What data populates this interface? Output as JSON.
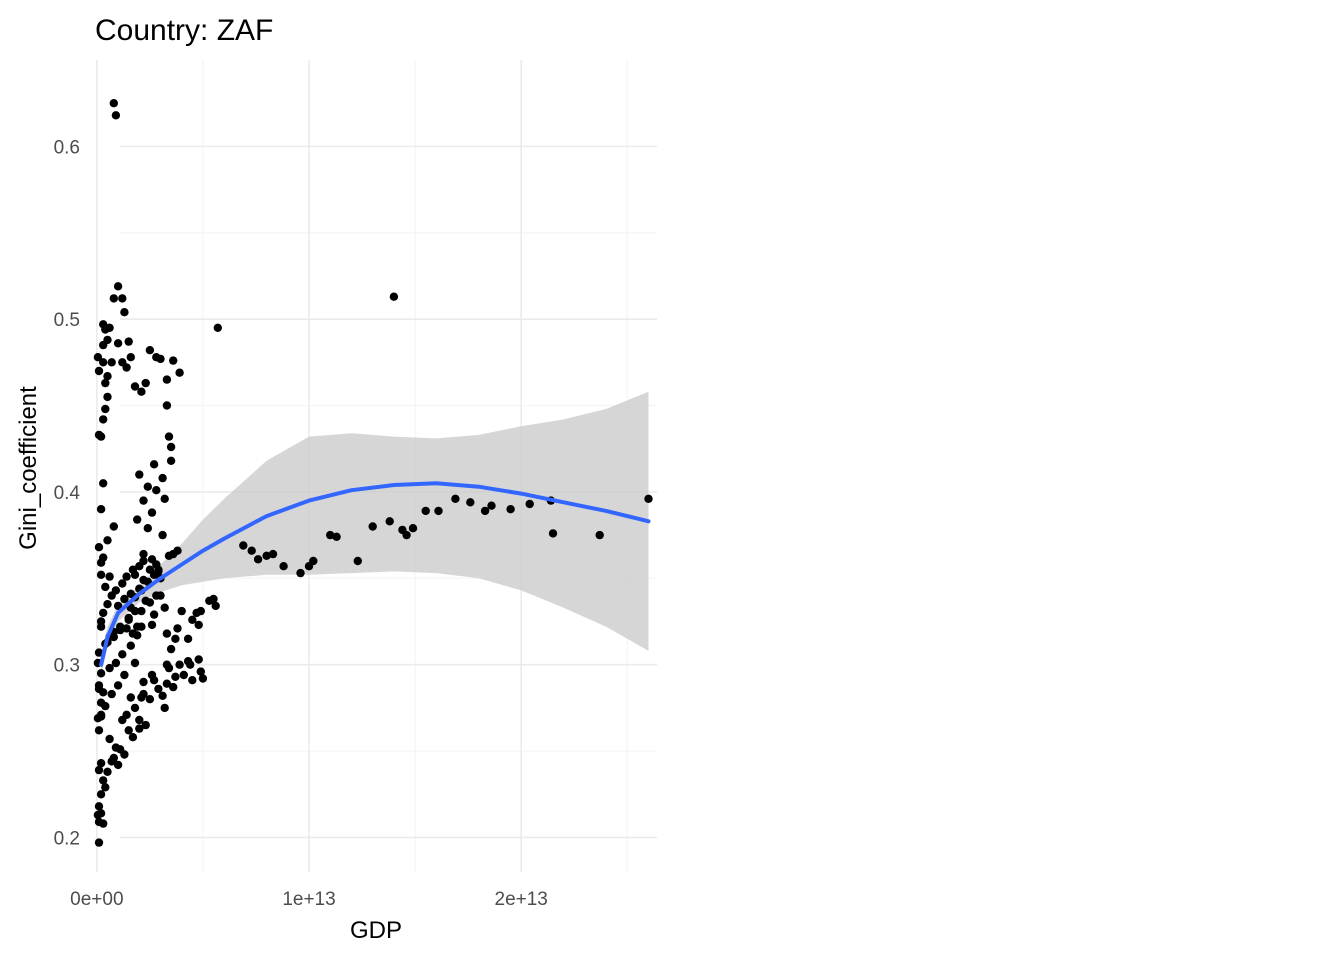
{
  "chart_data": {
    "type": "scatter",
    "title": "Country: ZAF",
    "xlabel": "GDP",
    "ylabel": "Gini_coefficient",
    "xlim": [
      -700000000000.0,
      26400000000000.0
    ],
    "ylim": [
      0.18,
      0.65
    ],
    "x_ticks": [
      0,
      10000000000000.0,
      20000000000000.0
    ],
    "x_tick_labels": [
      "0e+00",
      "1e+13",
      "2e+13"
    ],
    "y_ticks": [
      0.2,
      0.3,
      0.4,
      0.5,
      0.6
    ],
    "y_tick_labels": [
      "0.2",
      "0.3",
      "0.4",
      "0.5",
      "0.6"
    ],
    "grid": true,
    "legend": "none",
    "colors": {
      "points": "#000000",
      "smooth_line": "#3366ff",
      "confidence_band": "#cccccc"
    },
    "series": [
      {
        "kind": "points",
        "x": [
          800000000000.0,
          900000000000.0,
          1000000000000.0,
          800000000000.0,
          1200000000000.0,
          1300000000000.0,
          1500000000000.0,
          1000000000000.0,
          300000000000.0,
          400000000000.0,
          300000000000.0,
          500000000000.0,
          600000000000.0,
          300000000000.0,
          400000000000.0,
          700000000000.0,
          500000000000.0,
          500000000000.0,
          400000000000.0,
          1200000000000.0,
          1400000000000.0,
          1600000000000.0,
          1800000000000.0,
          2100000000000.0,
          2300000000000.0,
          2500000000000.0,
          2800000000000.0,
          3000000000000.0,
          3300000000000.0,
          3600000000000.0,
          3900000000000.0,
          3300000000000.0,
          3400000000000.0,
          3500000000000.0,
          2700000000000.0,
          3100000000000.0,
          3500000000000.0,
          2000000000000.0,
          2400000000000.0,
          2800000000000.0,
          3200000000000.0,
          2200000000000.0,
          2600000000000.0,
          1900000000000.0,
          2400000000000.0,
          3100000000000.0,
          5700000000000.0,
          3800000000000.0,
          2200000000000.0,
          2800000000000.0,
          3400000000000.0,
          2600000000000.0,
          2900000000000.0,
          1800000000000.0,
          2200000000000.0,
          3000000000000.0,
          2000000000000.0,
          1800000000000.0,
          2500000000000.0,
          3000000000000.0,
          1600000000000.0,
          2100000000000.0,
          2700000000000.0,
          3200000000000.0,
          1500000000000.0,
          1900000000000.0,
          2600000000000.0,
          3300000000000.0,
          3700000000000.0,
          4300000000000.0,
          4700000000000.0,
          5300000000000.0,
          5500000000000.0,
          5600000000000.0,
          4900000000000.0,
          4000000000000.0,
          4500000000000.0,
          4800000000000.0,
          4300000000000.0,
          3300000000000.0,
          3700000000000.0,
          2200000000000.0,
          2700000000000.0,
          3300000000000.0,
          3600000000000.0,
          4100000000000.0,
          4800000000000.0,
          4900000000000.0,
          5000000000000.0,
          4500000000000.0,
          3900000000000.0,
          3400000000000.0,
          2900000000000.0,
          3100000000000.0,
          2500000000000.0,
          1800000000000.0,
          1400000000000.0,
          1200000000000.0,
          1500000000000.0,
          2000000000000.0,
          1700000000000.0,
          2300000000000.0,
          2000000000000.0,
          1600000000000.0,
          900000000000.0,
          1100000000000.0,
          1300000000000.0,
          600000000000.0,
          700000000000.0,
          500000000000.0,
          800000000000.0,
          1000000000000.0,
          300000000000.0,
          400000000000.0,
          200000000000.0,
          100000000000.0,
          50000000000.0,
          100000000000.0,
          200000000000.0,
          300000000000.0,
          100000000000.0,
          200000000000.0,
          100000000000.0,
          50000000000.0,
          200000000000.0,
          300000000000.0,
          100000000000.0,
          200000000000.0,
          50000000000.0,
          100000000000.0,
          400000000000.0,
          600000000000.0,
          800000000000.0,
          1100000000000.0,
          1400000000000.0,
          1700000000000.0,
          200000000000.0,
          300000000000.0,
          500000000000.0,
          700000000000.0,
          900000000000.0,
          1200000000000.0,
          1400000000000.0,
          1700000000000.0,
          2000000000000.0,
          2200000000000.0,
          2500000000000.0,
          1000000000000.0,
          1300000000000.0,
          1600000000000.0,
          2100000000000.0,
          2400000000000.0,
          2700000000000.0,
          500000000000.0,
          800000000000.0,
          1100000000000.0,
          1500000000000.0,
          1800000000000.0,
          2300000000000.0,
          2800000000000.0,
          600000000000.0,
          900000000000.0,
          1200000000000.0,
          1600000000000.0,
          1900000000000.0,
          2100000000000.0,
          200000000000.0,
          400000000000.0,
          700000000000.0,
          1000000000000.0,
          1300000000000.0,
          200000000000.0,
          300000000000.0,
          500000000000.0,
          800000000000.0,
          100000000000.0,
          200000000000.0,
          400000000000.0,
          600000000000.0,
          200000000000.0,
          300000000000.0,
          100000000000.0,
          200000000000.0,
          50000000000.0,
          100000000000.0,
          300000000000.0,
          200000000000.0,
          100000000000.0,
          200000000000.0,
          100000000000.0,
          6900000000000.0,
          7300000000000.0,
          7600000000000.0,
          8000000000000.0,
          8300000000000.0,
          8800000000000.0,
          9600000000000.0,
          10000000000000.0,
          10200000000000.0,
          11000000000000.0,
          11300000000000.0,
          12300000000000.0,
          13000000000000.0,
          13800000000000.0,
          14400000000000.0,
          14600000000000.0,
          14900000000000.0,
          15500000000000.0,
          16100000000000.0,
          16900000000000.0,
          17600000000000.0,
          18300000000000.0,
          18600000000000.0,
          19500000000000.0,
          20400000000000.0,
          21400000000000.0,
          21500000000000.0,
          23700000000000.0,
          26000000000000.0,
          14000000000000.0,
          2900000000000.0,
          3600000000000.0,
          1800000000000.0,
          2200000000000.0,
          3500000000000.0,
          3800000000000.0,
          4400000000000.0,
          3200000000000.0,
          2600000000000.0,
          2100000000000.0
        ],
        "y": [
          0.625,
          0.618,
          0.519,
          0.512,
          0.512,
          0.504,
          0.487,
          0.486,
          0.497,
          0.494,
          0.485,
          0.488,
          0.495,
          0.475,
          0.463,
          0.475,
          0.467,
          0.455,
          0.448,
          0.475,
          0.472,
          0.478,
          0.461,
          0.458,
          0.463,
          0.482,
          0.478,
          0.477,
          0.465,
          0.476,
          0.469,
          0.45,
          0.432,
          0.426,
          0.416,
          0.408,
          0.418,
          0.41,
          0.403,
          0.401,
          0.396,
          0.395,
          0.388,
          0.384,
          0.379,
          0.375,
          0.495,
          0.366,
          0.364,
          0.358,
          0.363,
          0.361,
          0.355,
          0.352,
          0.349,
          0.35,
          0.344,
          0.339,
          0.336,
          0.34,
          0.333,
          0.331,
          0.329,
          0.333,
          0.327,
          0.322,
          0.323,
          0.318,
          0.315,
          0.315,
          0.33,
          0.337,
          0.338,
          0.334,
          0.331,
          0.331,
          0.326,
          0.323,
          0.302,
          0.3,
          0.293,
          0.29,
          0.291,
          0.289,
          0.287,
          0.294,
          0.303,
          0.296,
          0.292,
          0.291,
          0.3,
          0.298,
          0.286,
          0.282,
          0.28,
          0.275,
          0.271,
          0.268,
          0.262,
          0.263,
          0.258,
          0.265,
          0.268,
          0.281,
          0.252,
          0.251,
          0.248,
          0.257,
          0.244,
          0.238,
          0.246,
          0.242,
          0.233,
          0.229,
          0.225,
          0.218,
          0.213,
          0.209,
          0.214,
          0.208,
          0.197,
          0.243,
          0.239,
          0.269,
          0.271,
          0.284,
          0.288,
          0.295,
          0.301,
          0.307,
          0.312,
          0.316,
          0.319,
          0.322,
          0.321,
          0.318,
          0.325,
          0.33,
          0.335,
          0.34,
          0.343,
          0.347,
          0.351,
          0.355,
          0.357,
          0.36,
          0.355,
          0.334,
          0.338,
          0.341,
          0.343,
          0.348,
          0.352,
          0.313,
          0.316,
          0.32,
          0.326,
          0.331,
          0.337,
          0.34,
          0.298,
          0.301,
          0.306,
          0.311,
          0.317,
          0.322,
          0.27,
          0.276,
          0.283,
          0.288,
          0.294,
          0.352,
          0.362,
          0.372,
          0.38,
          0.368,
          0.359,
          0.345,
          0.351,
          0.39,
          0.405,
          0.433,
          0.432,
          0.478,
          0.47,
          0.442,
          0.322,
          0.262,
          0.278,
          0.286,
          0.369,
          0.366,
          0.361,
          0.363,
          0.364,
          0.357,
          0.353,
          0.357,
          0.36,
          0.375,
          0.374,
          0.36,
          0.38,
          0.383,
          0.378,
          0.375,
          0.379,
          0.389,
          0.389,
          0.396,
          0.394,
          0.389,
          0.392,
          0.39,
          0.393,
          0.395,
          0.376,
          0.375,
          0.396,
          0.513,
          0.354,
          0.364,
          0.301,
          0.283,
          0.309,
          0.321,
          0.3,
          0.275,
          0.294,
          0.281
        ]
      },
      {
        "kind": "smooth",
        "x": [
          200000000000.0,
          500000000000.0,
          1000000000000.0,
          2000000000000.0,
          3000000000000.0,
          4000000000000.0,
          5000000000000.0,
          6000000000000.0,
          8000000000000.0,
          10000000000000.0,
          12000000000000.0,
          14000000000000.0,
          16000000000000.0,
          18000000000000.0,
          20000000000000.0,
          22000000000000.0,
          24000000000000.0,
          26000000000000.0
        ],
        "y": [
          0.3,
          0.316,
          0.33,
          0.341,
          0.35,
          0.358,
          0.366,
          0.373,
          0.386,
          0.395,
          0.401,
          0.404,
          0.405,
          0.403,
          0.399,
          0.394,
          0.389,
          0.383
        ],
        "lower": [
          0.294,
          0.31,
          0.325,
          0.336,
          0.342,
          0.346,
          0.348,
          0.35,
          0.352,
          0.352,
          0.353,
          0.354,
          0.353,
          0.35,
          0.343,
          0.333,
          0.322,
          0.308
        ],
        "upper": [
          0.306,
          0.322,
          0.335,
          0.346,
          0.358,
          0.37,
          0.384,
          0.396,
          0.418,
          0.432,
          0.434,
          0.432,
          0.431,
          0.433,
          0.438,
          0.442,
          0.448,
          0.458
        ]
      }
    ]
  }
}
